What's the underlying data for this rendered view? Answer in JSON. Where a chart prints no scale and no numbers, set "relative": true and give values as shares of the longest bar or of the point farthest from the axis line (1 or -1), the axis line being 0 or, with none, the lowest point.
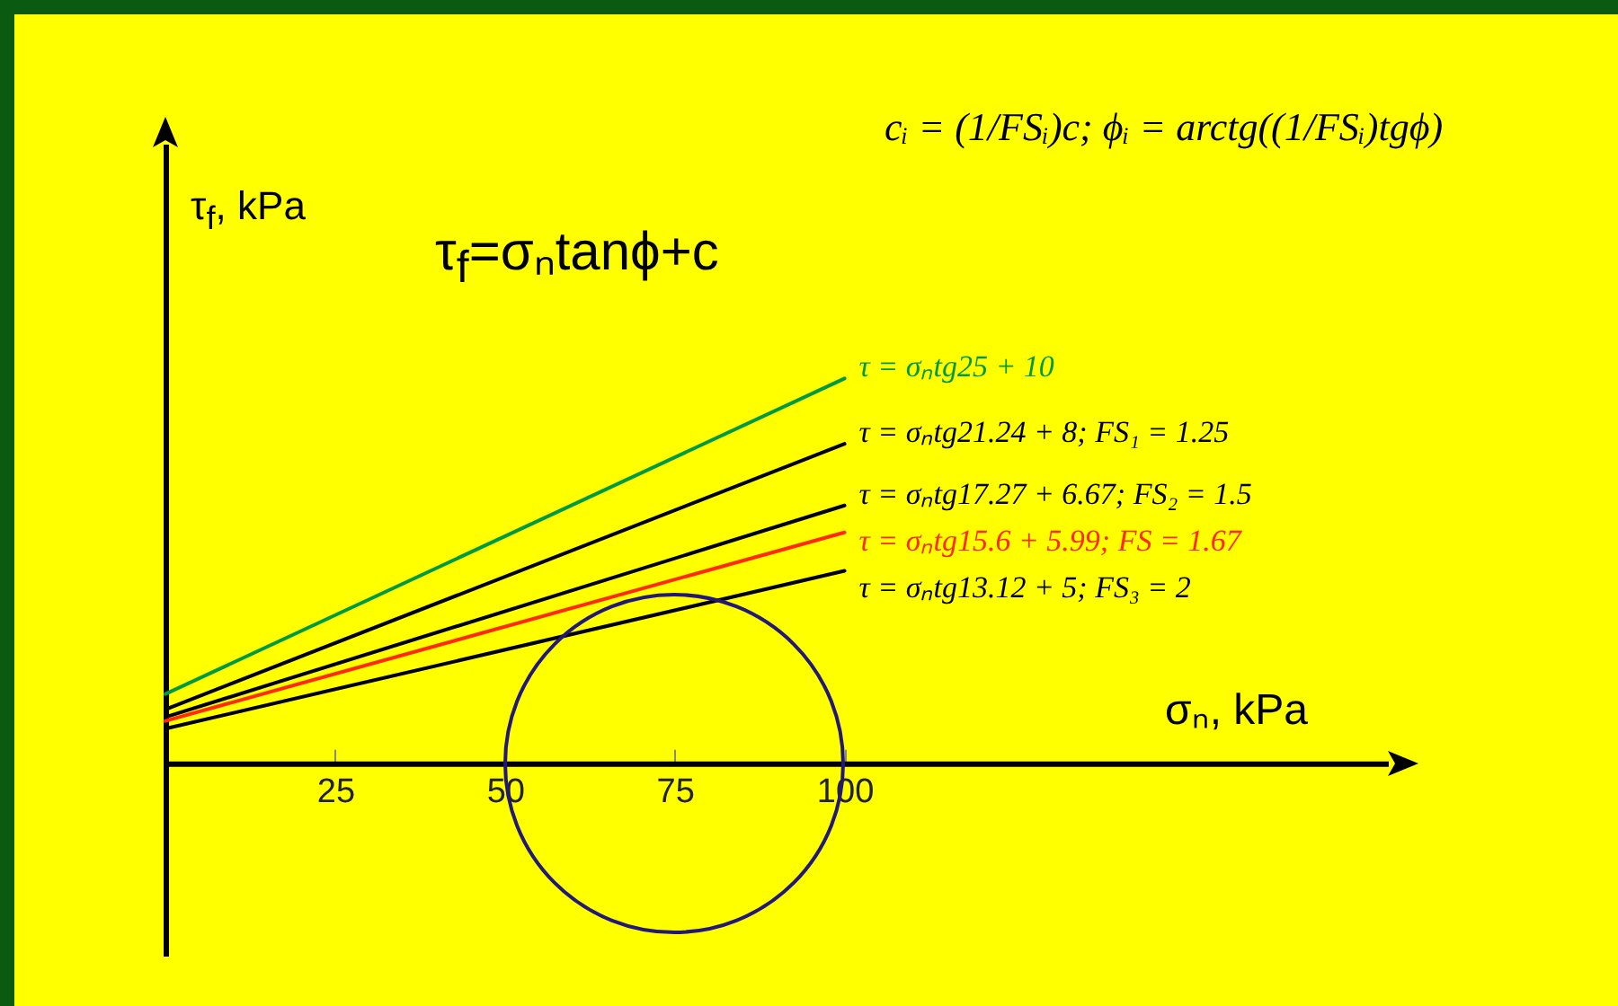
{
  "chart_data": {
    "type": "line",
    "relative": true,
    "xlabel": "σₙ, kPa",
    "ylabel": "τ$_{f}$, kPa",
    "xlim": [
      0,
      180
    ],
    "xticks": [
      25,
      50,
      75,
      100
    ],
    "x": [
      0,
      100
    ],
    "annotations": [
      "τ$_{f}$=σₙtanϕ+c",
      "cᵢ = (1/FSᵢ)c;  ϕᵢ = arctg((1/FSᵢ)tgϕ)"
    ],
    "legend": false,
    "grid": false,
    "marker": "none",
    "series": [
      {
        "name": "τ = σₙtg25 + 10",
        "color": "#009a44",
        "values": [
          0.18,
          1.0
        ]
      },
      {
        "name": "τ = σₙtg21.24 + 8; FS₁ = 1.25",
        "color": "#000000",
        "values": [
          0.14,
          0.83
        ]
      },
      {
        "name": "τ = σₙtg17.27 + 6.67; FS₂ = 1.5",
        "color": "#000000",
        "values": [
          0.12,
          0.67
        ]
      },
      {
        "name": "τ = σₙtg15.6 + 5.99; FS = 1.67",
        "color": "#ff2a00",
        "values": [
          0.11,
          0.6
        ]
      },
      {
        "name": "τ = σₙtg13.12 + 5; FS₃ = 2",
        "color": "#000000",
        "values": [
          0.09,
          0.5
        ]
      }
    ]
  }
}
